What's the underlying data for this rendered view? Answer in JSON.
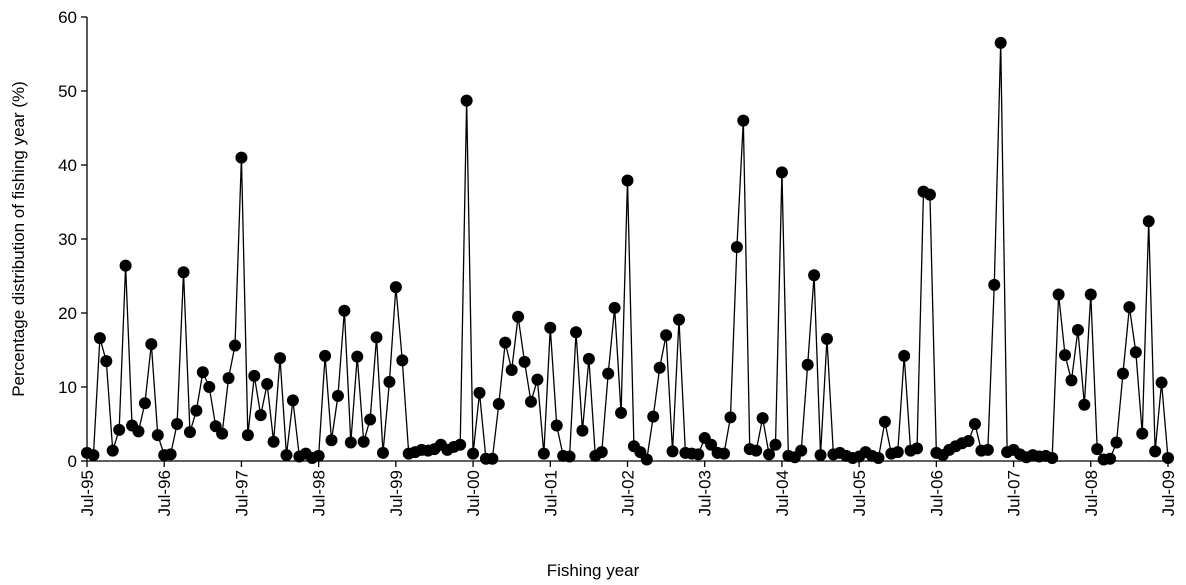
{
  "chart_data": {
    "type": "line",
    "xlabel": "Fishing year",
    "ylabel": "Percentage distribution of fishing year (%)",
    "categories": [
      "Jul-95",
      null,
      null,
      null,
      null,
      null,
      null,
      null,
      null,
      null,
      null,
      null,
      "Jul-96",
      null,
      null,
      null,
      null,
      null,
      null,
      null,
      null,
      null,
      null,
      null,
      "Jul-97",
      null,
      null,
      null,
      null,
      null,
      null,
      null,
      null,
      null,
      null,
      null,
      "Jul-98",
      null,
      null,
      null,
      null,
      null,
      null,
      null,
      null,
      null,
      null,
      null,
      "Jul-99",
      null,
      null,
      null,
      null,
      null,
      null,
      null,
      null,
      null,
      null,
      null,
      "Jul-00",
      null,
      null,
      null,
      null,
      null,
      null,
      null,
      null,
      null,
      null,
      null,
      "Jul-01",
      null,
      null,
      null,
      null,
      null,
      null,
      null,
      null,
      null,
      null,
      null,
      "Jul-02",
      null,
      null,
      null,
      null,
      null,
      null,
      null,
      null,
      null,
      null,
      null,
      "Jul-03",
      null,
      null,
      null,
      null,
      null,
      null,
      null,
      null,
      null,
      null,
      null,
      "Jul-04",
      null,
      null,
      null,
      null,
      null,
      null,
      null,
      null,
      null,
      null,
      null,
      "Jul-05",
      null,
      null,
      null,
      null,
      null,
      null,
      null,
      null,
      null,
      null,
      null,
      "Jul-06",
      null,
      null,
      null,
      null,
      null,
      null,
      null,
      null,
      null,
      null,
      null,
      "Jul-07",
      null,
      null,
      null,
      null,
      null,
      null,
      null,
      null,
      null,
      null,
      null,
      "Jul-08",
      null,
      null,
      null,
      null,
      null,
      null,
      null,
      null,
      null,
      null,
      null,
      "Jul-09"
    ],
    "series": [
      {
        "color": "#000000",
        "values": [
          1.1,
          0.8,
          16.6,
          13.5,
          1.4,
          4.2,
          26.4,
          4.8,
          4.0,
          7.8,
          15.8,
          3.5,
          0.8,
          0.9,
          5.0,
          25.5,
          3.9,
          6.8,
          12.0,
          10.0,
          4.7,
          3.7,
          11.2,
          15.6,
          41.0,
          3.5,
          11.5,
          6.2,
          10.4,
          2.6,
          13.9,
          0.8,
          8.2,
          0.6,
          1.0,
          0.4,
          0.7,
          14.2,
          2.8,
          8.8,
          20.3,
          2.5,
          14.1,
          2.6,
          5.6,
          16.7,
          1.1,
          10.7,
          23.5,
          13.6,
          1.0,
          1.2,
          1.5,
          1.4,
          1.6,
          2.2,
          1.5,
          1.9,
          2.2,
          48.7,
          1.0,
          9.2,
          0.3,
          0.3,
          7.7,
          16.0,
          12.3,
          19.5,
          13.4,
          8.0,
          11.0,
          1.0,
          18.0,
          4.8,
          0.7,
          0.6,
          17.4,
          4.1,
          13.8,
          0.7,
          1.2,
          11.8,
          20.7,
          6.5,
          37.9,
          2.0,
          1.2,
          0.2,
          6.0,
          12.6,
          17.0,
          1.3,
          19.1,
          1.1,
          1.0,
          0.9,
          3.1,
          2.2,
          1.1,
          1.0,
          5.9,
          28.9,
          46.0,
          1.6,
          1.4,
          5.8,
          0.9,
          2.2,
          39.0,
          0.7,
          0.5,
          1.4,
          13.0,
          25.1,
          0.8,
          16.5,
          0.9,
          1.1,
          0.7,
          0.4,
          0.6,
          1.2,
          0.7,
          0.4,
          5.3,
          1.0,
          1.2,
          14.2,
          1.4,
          1.7,
          36.4,
          36.0,
          1.1,
          0.8,
          1.5,
          2.0,
          2.4,
          2.7,
          5.0,
          1.4,
          1.5,
          23.8,
          56.5,
          1.2,
          1.5,
          0.9,
          0.5,
          0.8,
          0.6,
          0.7,
          0.4,
          22.5,
          14.3,
          10.9,
          17.7,
          7.6,
          22.5,
          1.6,
          0.2,
          0.3,
          2.5,
          11.8,
          20.8,
          14.7,
          3.7,
          32.4,
          1.3,
          10.6,
          0.4
        ]
      }
    ],
    "ylim": [
      0,
      60
    ],
    "yticks": [
      0,
      10,
      20,
      30,
      40,
      50,
      60
    ],
    "grid": false
  }
}
